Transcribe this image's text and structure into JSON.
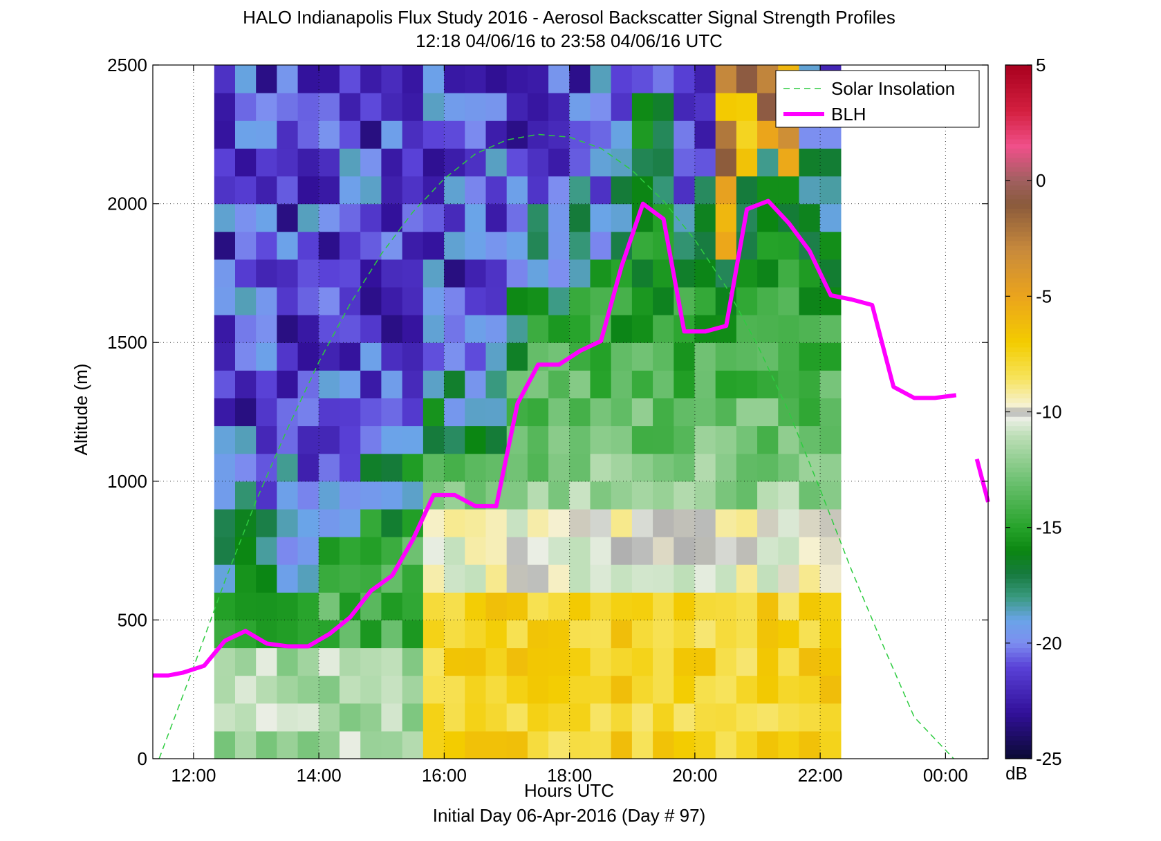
{
  "chart_data": {
    "type": "heatmap",
    "title": "HALO Indianapolis Flux Study 2016 - Aerosol Backscatter Signal Strength Profiles",
    "subtitle": "12:18 04/06/16 to 23:58 04/06/16  UTC",
    "xlabel": "Hours UTC",
    "xlabel2": "Initial Day 06-Apr-2016 (Day # 97)",
    "ylabel": "Altitude (m)",
    "xlim": [
      11.35,
      24.68
    ],
    "ylim": [
      0,
      2500
    ],
    "x_ticks": [
      12,
      14,
      16,
      18,
      20,
      22,
      24
    ],
    "x_tick_labels": [
      "12:00",
      "14:00",
      "16:00",
      "18:00",
      "20:00",
      "22:00",
      "00:00"
    ],
    "y_ticks": [
      0,
      500,
      1000,
      1500,
      2000,
      2500
    ],
    "y_tick_labels": [
      "0",
      "500",
      "1000",
      "1500",
      "2000",
      "2500"
    ],
    "grid": "dotted",
    "colorbar": {
      "unit": "dB",
      "range": [
        -25,
        5
      ],
      "ticks": [
        5,
        0,
        -5,
        -10,
        -15,
        -20,
        -25
      ],
      "tick_labels": [
        "5",
        "0",
        "-5",
        "-10",
        "-15",
        "-20",
        "-25"
      ],
      "stops": [
        {
          "v": -25,
          "c": "#0a0a33"
        },
        {
          "v": -23,
          "c": "#32109a"
        },
        {
          "v": -21,
          "c": "#5a42d8"
        },
        {
          "v": -20,
          "c": "#7d8ef0"
        },
        {
          "v": -19,
          "c": "#6aa4e8"
        },
        {
          "v": -18,
          "c": "#3a9a80"
        },
        {
          "v": -17,
          "c": "#167a3e"
        },
        {
          "v": -16,
          "c": "#0b8612"
        },
        {
          "v": -15,
          "c": "#26a32a"
        },
        {
          "v": -13,
          "c": "#6cc070"
        },
        {
          "v": -11,
          "c": "#bedfb8"
        },
        {
          "v": -10.3,
          "c": "#eaeee4"
        },
        {
          "v": -10,
          "c": "#b0b0b0"
        },
        {
          "v": -9.7,
          "c": "#f6f1d0"
        },
        {
          "v": -8.5,
          "c": "#f7e35a"
        },
        {
          "v": -7,
          "c": "#f3cc00"
        },
        {
          "v": -5,
          "c": "#eba41c"
        },
        {
          "v": -3,
          "c": "#c88a3c"
        },
        {
          "v": -1,
          "c": "#8a5a3c"
        },
        {
          "v": 0,
          "c": "#a06060"
        },
        {
          "v": 1.5,
          "c": "#f0508a"
        },
        {
          "v": 3,
          "c": "#d42040"
        },
        {
          "v": 5,
          "c": "#a8001e"
        }
      ]
    },
    "heatmap": {
      "x_start": 12.33,
      "x_step": 0.3333,
      "y_start": 50,
      "y_step": 100,
      "columns": 30,
      "rows": 25
    },
    "series": [
      {
        "name": "Solar Insolation",
        "color": "#2ecc40",
        "style": "dashed",
        "x": [
          11.45,
          12.0,
          12.5,
          13.0,
          13.5,
          14.0,
          14.5,
          15.0,
          15.5,
          16.0,
          16.5,
          17.0,
          17.5,
          18.0,
          18.5,
          19.0,
          19.5,
          20.0,
          20.5,
          21.0,
          21.5,
          22.0,
          22.5,
          23.0,
          23.5,
          24.13
        ],
        "y": [
          0,
          330,
          640,
          930,
          1190,
          1430,
          1640,
          1820,
          1970,
          2090,
          2180,
          2230,
          2250,
          2240,
          2200,
          2120,
          2010,
          1870,
          1700,
          1490,
          1250,
          970,
          680,
          410,
          150,
          0
        ]
      },
      {
        "name": "BLH",
        "color": "#ff00ff",
        "style": "solid",
        "x": [
          11.35,
          11.6,
          11.83,
          12.17,
          12.5,
          12.83,
          13.17,
          13.5,
          13.83,
          14.17,
          14.5,
          14.83,
          15.17,
          15.5,
          15.83,
          16.17,
          16.5,
          16.83,
          17.17,
          17.5,
          17.83,
          18.17,
          18.5,
          18.83,
          19.17,
          19.5,
          19.83,
          20.17,
          20.5,
          20.83,
          21.17,
          21.5,
          21.83,
          22.17,
          22.5,
          22.83,
          23.17,
          23.5,
          23.83,
          24.17
        ],
        "y": [
          300,
          300,
          310,
          335,
          425,
          460,
          415,
          405,
          405,
          450,
          510,
          605,
          660,
          790,
          950,
          950,
          910,
          910,
          1280,
          1420,
          1420,
          1470,
          1505,
          1775,
          2000,
          1945,
          1540,
          1540,
          1560,
          1980,
          2010,
          1930,
          1830,
          1670,
          1655,
          1635,
          1340,
          1300,
          1300,
          1310
        ]
      },
      {
        "name": "",
        "color": "#ff00ff",
        "style": "solid",
        "x": [
          24.5,
          24.68
        ],
        "y": [
          1080,
          925
        ]
      }
    ],
    "legend": {
      "placement": "top-right",
      "entries": [
        "Solar Insolation",
        "BLH"
      ]
    }
  }
}
